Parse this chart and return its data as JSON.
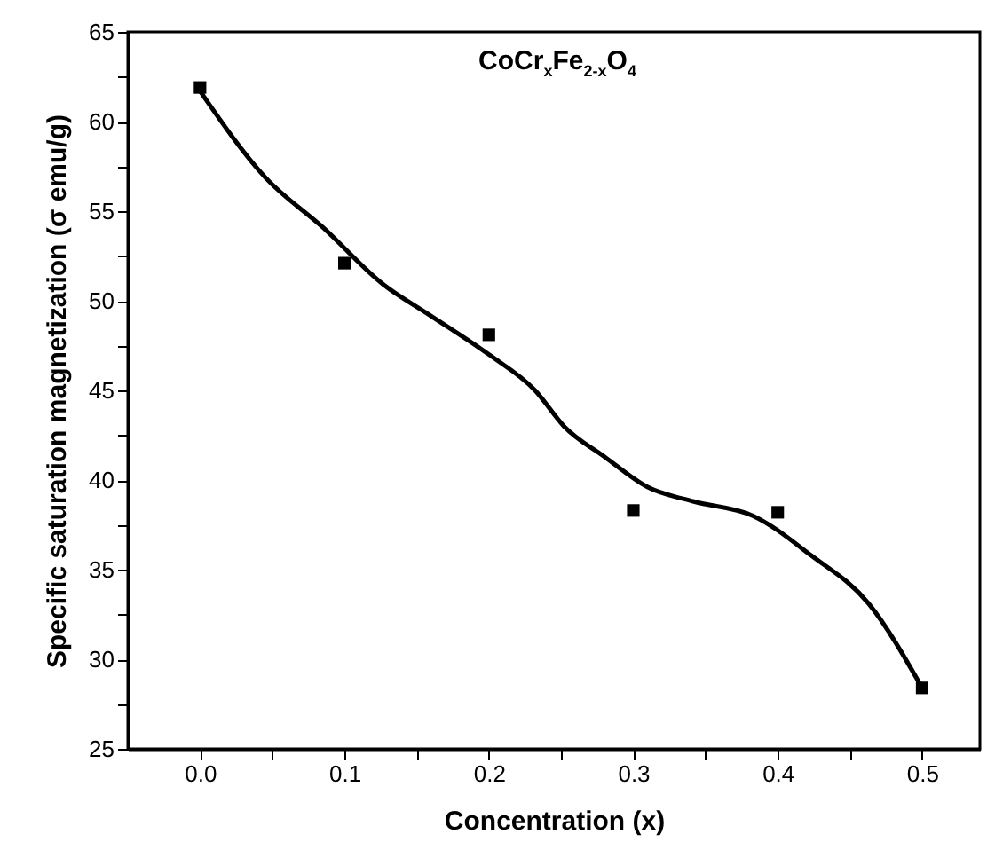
{
  "chart_data": {
    "type": "scatter",
    "title": "CoCr$_{x}$Fe$_{2-x}$O$_{4}$",
    "xlabel": "Concentration (x)",
    "ylabel": "Specific saturation magnetization (σ emu/g)",
    "xlim": [
      -0.05,
      0.54
    ],
    "ylim": [
      25,
      65
    ],
    "xticks": [
      {
        "value": 0,
        "label": "0.0"
      },
      {
        "value": 0.05,
        "label": null
      },
      {
        "value": 0.1,
        "label": "0.1"
      },
      {
        "value": 0.15,
        "label": null
      },
      {
        "value": 0.2,
        "label": "0.2"
      },
      {
        "value": 0.25,
        "label": null
      },
      {
        "value": 0.3,
        "label": "0.3"
      },
      {
        "value": 0.35,
        "label": null
      },
      {
        "value": 0.4,
        "label": "0.4"
      },
      {
        "value": 0.45,
        "label": null
      },
      {
        "value": 0.5,
        "label": "0.5"
      }
    ],
    "yticks": [
      25,
      {
        "value": 27.5,
        "label": null
      },
      30,
      {
        "value": 32.5,
        "label": null
      },
      35,
      {
        "value": 37.5,
        "label": null
      },
      40,
      {
        "value": 42.5,
        "label": null
      },
      45,
      {
        "value": 47.5,
        "label": null
      },
      50,
      {
        "value": 52.5,
        "label": null
      },
      55,
      {
        "value": 57.5,
        "label": null
      },
      60,
      {
        "value": 62.5,
        "label": null
      },
      65
    ],
    "grid": false,
    "series": [
      {
        "marker": "square",
        "color": "#000000",
        "x": [
          0,
          0.1,
          0.2,
          0.3,
          0.4,
          0.5
        ],
        "values": [
          61.9,
          52.1,
          48.1,
          38.3,
          38.2,
          28.4
        ]
      },
      {
        "type": "line",
        "line_style": "solid",
        "color": "#000000",
        "x": [
          0,
          0.045,
          0.085,
          0.127,
          0.159,
          0.2,
          0.232,
          0.252,
          0.28,
          0.31,
          0.342,
          0.383,
          0.423,
          0.463,
          0.5
        ],
        "values": [
          61.7,
          56.9,
          54.1,
          50.9,
          49.2,
          47,
          45,
          43,
          41.3,
          39.6,
          38.8,
          38,
          35.8,
          33.1,
          28.4
        ]
      }
    ]
  }
}
